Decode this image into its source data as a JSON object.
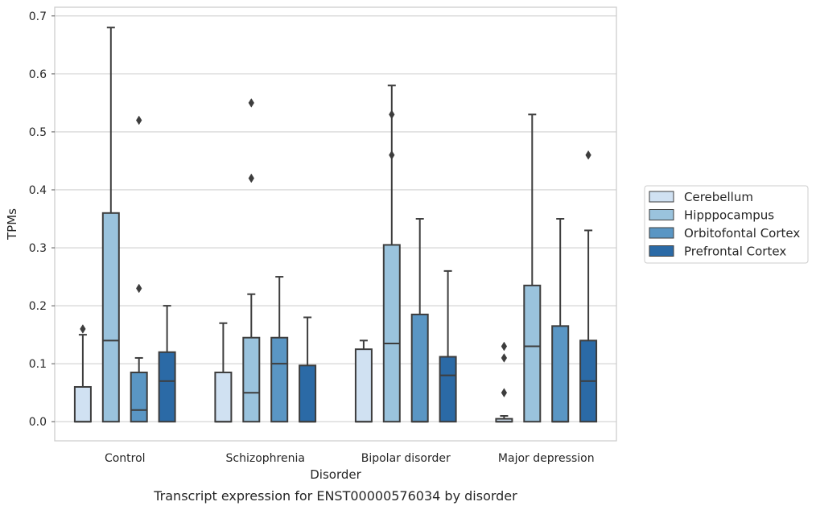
{
  "chart_data": {
    "type": "box",
    "title": "",
    "caption": "Transcript expression for ENST00000576034 by disorder",
    "xlabel": "Disorder",
    "ylabel": "TPMs",
    "ylim": [
      -0.033,
      0.715
    ],
    "yticks": [
      0.0,
      0.1,
      0.2,
      0.3,
      0.4,
      0.5,
      0.6,
      0.7
    ],
    "ytick_labels": [
      "0.0",
      "0.1",
      "0.2",
      "0.3",
      "0.4",
      "0.5",
      "0.6",
      "0.7"
    ],
    "grid": true,
    "legend_position": "right",
    "categories": [
      "Control",
      "Schizophrenia",
      "Bipolar disorder",
      "Major depression"
    ],
    "series": [
      {
        "name": "Cerebellum",
        "color": "#d0e1f2",
        "boxes": [
          {
            "whisker_low": 0.0,
            "q1": 0.0,
            "median": 0.0,
            "q3": 0.06,
            "whisker_high": 0.15,
            "outliers": [
              0.16
            ]
          },
          {
            "whisker_low": 0.0,
            "q1": 0.0,
            "median": 0.0,
            "q3": 0.085,
            "whisker_high": 0.17,
            "outliers": []
          },
          {
            "whisker_low": 0.0,
            "q1": 0.0,
            "median": 0.0,
            "q3": 0.125,
            "whisker_high": 0.14,
            "outliers": []
          },
          {
            "whisker_low": 0.0,
            "q1": 0.0,
            "median": 0.0,
            "q3": 0.005,
            "whisker_high": 0.01,
            "outliers": [
              0.05,
              0.11,
              0.13
            ]
          }
        ]
      },
      {
        "name": "Hipppocampus",
        "color": "#9ac3dd",
        "boxes": [
          {
            "whisker_low": 0.0,
            "q1": 0.0,
            "median": 0.14,
            "q3": 0.36,
            "whisker_high": 0.68,
            "outliers": []
          },
          {
            "whisker_low": 0.0,
            "q1": 0.0,
            "median": 0.05,
            "q3": 0.145,
            "whisker_high": 0.22,
            "outliers": [
              0.42,
              0.55
            ]
          },
          {
            "whisker_low": 0.0,
            "q1": 0.0,
            "median": 0.135,
            "q3": 0.305,
            "whisker_high": 0.58,
            "outliers": [
              0.46,
              0.53
            ]
          },
          {
            "whisker_low": 0.0,
            "q1": 0.0,
            "median": 0.13,
            "q3": 0.235,
            "whisker_high": 0.53,
            "outliers": []
          }
        ]
      },
      {
        "name": "Orbitofontal Cortex",
        "color": "#5a96c4",
        "boxes": [
          {
            "whisker_low": 0.0,
            "q1": 0.0,
            "median": 0.02,
            "q3": 0.085,
            "whisker_high": 0.11,
            "outliers": [
              0.23,
              0.52
            ]
          },
          {
            "whisker_low": 0.0,
            "q1": 0.0,
            "median": 0.1,
            "q3": 0.145,
            "whisker_high": 0.25,
            "outliers": []
          },
          {
            "whisker_low": 0.0,
            "q1": 0.0,
            "median": 0.0,
            "q3": 0.185,
            "whisker_high": 0.35,
            "outliers": []
          },
          {
            "whisker_low": 0.0,
            "q1": 0.0,
            "median": 0.0,
            "q3": 0.165,
            "whisker_high": 0.35,
            "outliers": []
          }
        ]
      },
      {
        "name": "Prefrontal Cortex",
        "color": "#2b6aa6",
        "boxes": [
          {
            "whisker_low": 0.0,
            "q1": 0.0,
            "median": 0.07,
            "q3": 0.12,
            "whisker_high": 0.2,
            "outliers": []
          },
          {
            "whisker_low": 0.0,
            "q1": 0.0,
            "median": 0.0,
            "q3": 0.097,
            "whisker_high": 0.18,
            "outliers": []
          },
          {
            "whisker_low": 0.0,
            "q1": 0.0,
            "median": 0.08,
            "q3": 0.112,
            "whisker_high": 0.26,
            "outliers": []
          },
          {
            "whisker_low": 0.0,
            "q1": 0.0,
            "median": 0.07,
            "q3": 0.14,
            "whisker_high": 0.33,
            "outliers": [
              0.46
            ]
          }
        ]
      }
    ]
  }
}
